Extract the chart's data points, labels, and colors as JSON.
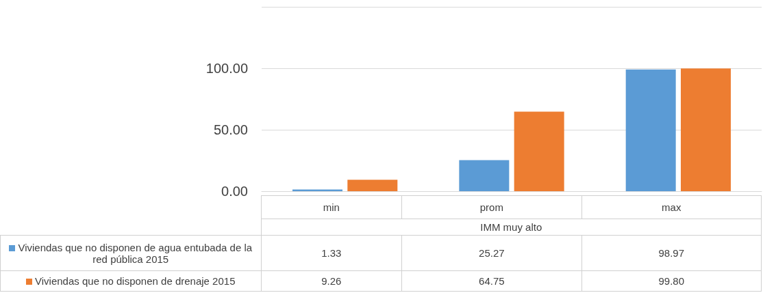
{
  "chart_data": {
    "type": "bar",
    "xlabel": "IMM muy alto",
    "categories": [
      "min",
      "prom",
      "max"
    ],
    "series": [
      {
        "name": "Viviendas que no disponen de agua entubada de la red pública 2015",
        "color": "#5b9bd5",
        "values": [
          1.33,
          25.27,
          98.97
        ],
        "value_labels": [
          "1.33",
          "25.27",
          "98.97"
        ]
      },
      {
        "name": "Viviendas que no disponen de drenaje 2015",
        "color": "#ed7d31",
        "values": [
          9.26,
          64.75,
          99.8
        ],
        "value_labels": [
          "9.26",
          "64.75",
          "99.80"
        ]
      }
    ],
    "ylim": [
      0,
      150
    ],
    "yticks": [
      {
        "value": 0,
        "label": "0.00"
      },
      {
        "value": 50,
        "label": "50.00"
      },
      {
        "value": 100,
        "label": "100.00"
      },
      {
        "value": 150,
        "label": null
      }
    ],
    "grid": "y",
    "legend": "bottom"
  }
}
